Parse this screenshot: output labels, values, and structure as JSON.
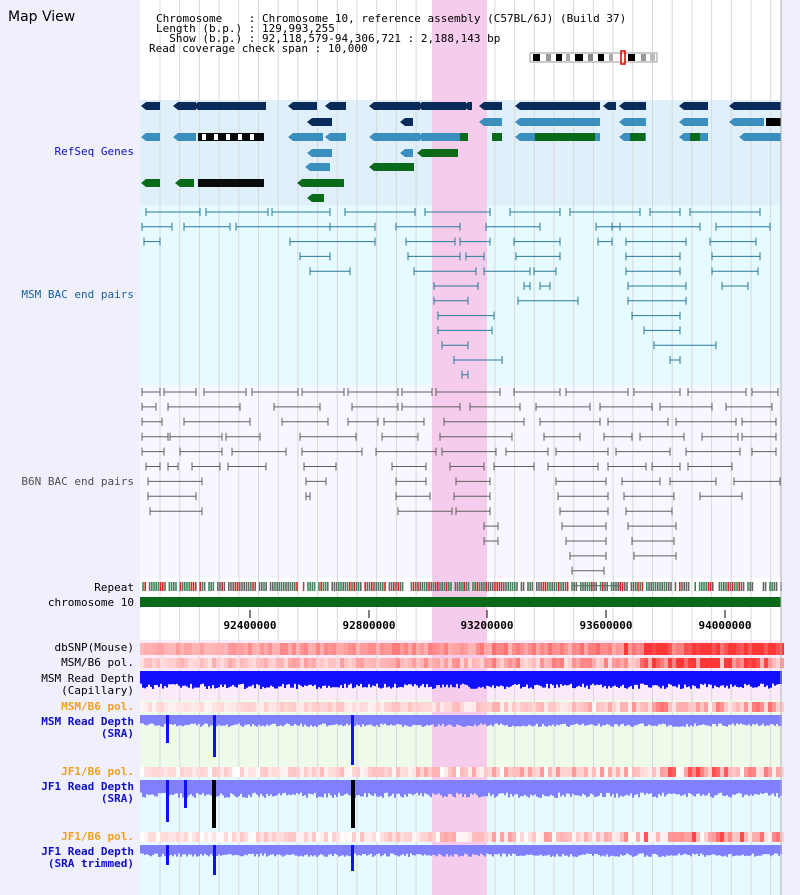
{
  "page": {
    "title": "Map View"
  },
  "header": {
    "chromosome_key": "Chromosome",
    "chromosome_value": "Chromosome 10, reference assembly (C57BL/6J) (Build 37)",
    "length_key": "Length (b.p.)",
    "length_value": "129,993,255",
    "show_key": "Show (b.p.)",
    "show_value": "92,118,579-94,306,721 : 2,188,143 bp",
    "coverage_key": "Read coverage check span",
    "coverage_value": "10,000"
  },
  "tracks": {
    "refseq": "RefSeq Genes",
    "msm_bac": "MSM BAC end pairs",
    "b6n_bac": "B6N BAC end pairs",
    "repeat": "Repeat",
    "chromosome": "chromosome 10",
    "dbsnp": "dbSNP(Mouse)",
    "msm_b6_pol_1": "MSM/B6 pol.",
    "msm_depth_cap_1": "MSM Read Depth",
    "msm_depth_cap_2": "(Capillary)",
    "msm_b6_pol_2": "MSM/B6 pol.",
    "msm_depth_sra_1": "MSM Read Depth",
    "msm_depth_sra_2": "(SRA)",
    "jf1_b6_pol_1": "JF1/B6 pol.",
    "jf1_depth_sra_1": "JF1 Read Depth",
    "jf1_depth_sra_2": "(SRA)",
    "jf1_b6_pol_2": "JF1/B6 pol.",
    "jf1_depth_trim_1": "JF1 Read Depth",
    "jf1_depth_trim_2": "(SRA trimmed)"
  },
  "axis": {
    "ticks": [
      "92400000",
      "92800000",
      "93200000",
      "93600000",
      "94000000"
    ]
  },
  "colors": {
    "background": "#eff0fb",
    "refseq_bg": "#dff0fb",
    "msm_bac_bg": "#e6fbff",
    "b6n_bac_bg": "#f7f7ff",
    "highlight": "#f8d8f0",
    "gene_navy": "#0a2a5a",
    "gene_blue": "#3a8fbf",
    "gene_green": "#0a6a1a",
    "msm_bac": "#2a7a9a",
    "b6n_bac": "#606060",
    "chromosome": "#0a6a1a",
    "depth_blue": "#1010ff",
    "depth_light": "#8080ff"
  }
}
